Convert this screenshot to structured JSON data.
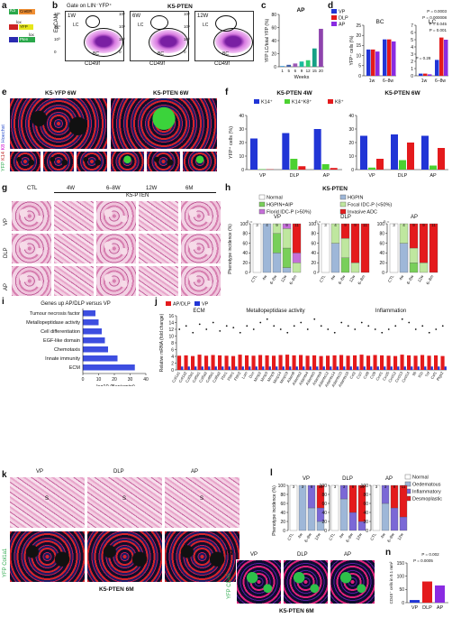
{
  "panels": {
    "a": "a",
    "b": "b",
    "c": "c",
    "d": "d",
    "e": "e",
    "f": "f",
    "g": "g",
    "h": "h",
    "i": "i",
    "j": "j",
    "k": "k",
    "l": "l",
    "m": "m",
    "n": "n"
  },
  "a": {
    "k5": "K5",
    "cre": "CreER",
    "lox1": "lox",
    "lox2": "lox",
    "yfp": "YFP",
    "pten": "Pten"
  },
  "b": {
    "gate": "Gate on LIN⁻YFP⁺",
    "title": "K5-PTEN",
    "xlabel": "CD49f",
    "ylabel": "EpCAM",
    "weeks": [
      "1W",
      "6W",
      "12W"
    ],
    "lc": "LC",
    "bc": "BC",
    "ticks": [
      "10⁵",
      "10⁴",
      "10³",
      "0"
    ]
  },
  "c": {
    "title": "AP",
    "ylabel": "YFP LC/total YFP (%)",
    "xlabel": "Weeks",
    "colors": [
      "#1a8ad3",
      "#3f5fa8",
      "#9b59b6",
      "#1abc9c",
      "#2ecc71",
      "#16a085",
      "#8e44ad"
    ]
  },
  "chart_data": [
    {
      "type": "bar",
      "title": "AP",
      "xlabel": "Weeks",
      "ylabel": "YFP LC/total YFP (%)",
      "categories": [
        "1",
        "5",
        "6",
        "9",
        "12",
        "15",
        "20"
      ],
      "values": [
        1,
        3,
        5,
        8,
        10,
        28,
        58
      ],
      "ylim": [
        0,
        80
      ],
      "yticks": [
        0,
        20,
        40,
        60,
        80
      ]
    },
    {
      "type": "bar",
      "title": "BC",
      "ylabel": "YFP⁺ cells (%)",
      "categories": [
        "1w",
        "6–8w"
      ],
      "series": [
        {
          "name": "VP",
          "values": [
            13,
            18
          ]
        },
        {
          "name": "DLP",
          "values": [
            13,
            18
          ]
        },
        {
          "name": "AP",
          "values": [
            12,
            17
          ]
        }
      ],
      "ylim": [
        0,
        25
      ],
      "yticks": [
        0,
        5,
        10,
        15,
        20,
        25
      ]
    },
    {
      "type": "bar",
      "title": "LC",
      "categories": [
        "1w",
        "6–8w"
      ],
      "series": [
        {
          "name": "VP",
          "values": [
            0.3,
            2.2
          ]
        },
        {
          "name": "DLP",
          "values": [
            0.3,
            5.3
          ]
        },
        {
          "name": "AP",
          "values": [
            0.2,
            5.0
          ]
        }
      ],
      "ylim": [
        0,
        7
      ],
      "yticks": [
        0,
        1,
        2,
        3,
        4,
        5,
        6,
        7
      ],
      "annotations": [
        "P = 0.0003",
        "P = 0.000008",
        "P = 0.045",
        "P = 0.001",
        "P = 0.28"
      ]
    },
    {
      "type": "bar",
      "title": "K5-PTEN 4W",
      "ylabel": "YFP⁺ cells (%)",
      "categories": [
        "VP",
        "DLP",
        "AP"
      ],
      "series": [
        {
          "name": "K14⁺",
          "values": [
            23,
            27,
            30
          ]
        },
        {
          "name": "K14⁺K8⁺",
          "values": [
            0.3,
            8,
            4
          ]
        },
        {
          "name": "K8⁺",
          "values": [
            0.2,
            2.5,
            1.2
          ]
        }
      ],
      "ylim": [
        0,
        40
      ],
      "yticks": [
        0,
        10,
        20,
        30,
        40
      ]
    },
    {
      "type": "bar",
      "title": "K5-PTEN 6W",
      "categories": [
        "VP",
        "DLP",
        "AP"
      ],
      "series": [
        {
          "name": "K14⁺",
          "values": [
            25,
            26,
            25
          ]
        },
        {
          "name": "K14⁺K8⁺",
          "values": [
            1.5,
            7,
            3
          ]
        },
        {
          "name": "K8⁺",
          "values": [
            8,
            20,
            16
          ]
        }
      ],
      "ylim": [
        0,
        40
      ],
      "yticks": [
        0,
        10,
        20,
        30,
        40
      ]
    },
    {
      "type": "bar",
      "title": "Genes up AP/DLP versus VP",
      "xlabel": "−log10 (Benjamini)",
      "categories": [
        "Tumour necrosis factor",
        "Metallopeptidase activity",
        "Cell differentiation",
        "EGF-like domain",
        "Chemotaxis",
        "Innate immunity",
        "ECM"
      ],
      "values": [
        8,
        10,
        12,
        14,
        16,
        22,
        33
      ],
      "xlim": [
        0,
        40
      ],
      "xticks": [
        0,
        10,
        20,
        30,
        40
      ]
    },
    {
      "type": "bar",
      "title": "",
      "ylabel": "Relative mRNA (fold change)",
      "series": [
        {
          "name": "AP/DLP",
          "values": [
            1
          ]
        },
        {
          "name": "VP",
          "values": [
            1
          ]
        }
      ],
      "groups": [
        "ECM",
        "Metallopeptidase activity",
        "Inflammation"
      ],
      "ylim": [
        0,
        16
      ],
      "yticks": [
        0,
        2,
        4,
        6,
        8,
        10,
        12,
        14,
        16
      ]
    },
    {
      "type": "bar",
      "title": "",
      "ylabel": "CD45⁺ cells in 0.1 mm²",
      "categories": [
        "VP",
        "DLP",
        "AP"
      ],
      "values": [
        10,
        80,
        65
      ],
      "ylim": [
        0,
        150
      ],
      "yticks": [
        0,
        50,
        100,
        150
      ],
      "annotations": [
        "P = 0.002",
        "P = 0.0005"
      ]
    }
  ],
  "d": {
    "legend": [
      "VP",
      "DLP",
      "AP"
    ],
    "colors": [
      "#2135d6",
      "#e41a1c",
      "#8a2be2"
    ],
    "bc": "BC",
    "lc": "LC",
    "ylabel": "YFP⁺ cells (%)",
    "p": [
      "P = 0.0003",
      "P = 0.000008",
      "P = 0.045",
      "P = 0.001",
      "P = 0.28"
    ],
    "cats": [
      "1w",
      "6–8w",
      "1w",
      "6–8w"
    ]
  },
  "e": {
    "left": "K5-YFP 6W",
    "right": "K5-PTEN 6W",
    "ylabel_yfp": "YFP",
    "ylabel_k14": "K14",
    "ylabel_k8": "K8",
    "ylabel_h": "Hoechst"
  },
  "f": {
    "left": "K5-PTEN 4W",
    "right": "K5-PTEN 6W",
    "legend": [
      "K14⁺",
      "K14⁺K8⁺",
      "K8⁺"
    ],
    "colors": [
      "#2135d6",
      "#4cd131",
      "#e41a1c"
    ],
    "ylabel": "YFP⁺ cells (%)",
    "cats": [
      "VP",
      "DLP",
      "AP"
    ]
  },
  "g": {
    "ctl": "CTL",
    "w4": "4W",
    "w68": "6–8W",
    "w12": "12W",
    "m6": "6M",
    "k5": "K5-PTEN",
    "rows": [
      "VP",
      "DLP",
      "AP"
    ]
  },
  "h": {
    "title": "K5-PTEN",
    "legend": [
      "Normal",
      "HGPIN",
      "HGPIN+AIP",
      "Focal IDC-P (<50%)",
      "Florid IDC-P (>50%)",
      "Invasive ADC"
    ],
    "colors": [
      "#ffffff",
      "#9eb7d8",
      "#79cf5a",
      "#bfe79f",
      "#c56fd8",
      "#e41a1c"
    ],
    "panels": [
      "VP",
      "DLP",
      "AP"
    ],
    "ylabel": "Phenotype incidence (%)",
    "n": "n =",
    "ns": [
      "3",
      "4",
      "9",
      "9",
      "11"
    ],
    "cats": [
      "CTL",
      "4w",
      "6–8w",
      "12w",
      "6–8m"
    ]
  },
  "i": {
    "title": "Genes up AP/DLP versus VP",
    "cats": [
      "Tumour necrosis factor",
      "Metallopeptidase activity",
      "Cell differentiation",
      "EGF-like domain",
      "Chemotaxis",
      "Innate immunity",
      "ECM"
    ],
    "xlabel": "−log10 (Benjamini)",
    "ticks": [
      "0",
      "10",
      "20",
      "30",
      "40"
    ]
  },
  "j": {
    "legend": [
      "AP/DLP",
      "VP"
    ],
    "groups": [
      "ECM",
      "Metallopeptidase activity",
      "Inflammation"
    ],
    "ylabel": "Relative mRNA (fold change)",
    "genes": [
      "Col1a1",
      "Col1a2",
      "Col3a1",
      "Col5a1",
      "Col5a2",
      "Col6a1",
      "Col6a2",
      "Fbn1",
      "Fbln1",
      "Fbln2",
      "Lum",
      "Dcn",
      "Mmp2",
      "Mmp3",
      "Mmp9",
      "Mmp14",
      "Mmp19",
      "Adam8",
      "Adamts2",
      "Adamts4",
      "Adamts5",
      "Adamts9",
      "Adamts12",
      "Adamts14",
      "Adamts15",
      "Adamts16",
      "Ccl2",
      "Ccl7",
      "Ccl8",
      "Ccl9",
      "Cxcl1",
      "Cxcl5",
      "Cxcl12",
      "Cxcl13",
      "Cxcl14",
      "Il6",
      "Il1b",
      "Tnf",
      "Csf1",
      "Ptgs2"
    ]
  },
  "k": {
    "rows": [
      "VP",
      "DLP",
      "AP"
    ],
    "s": "S",
    "bottom": "K5-PTEN 6M",
    "ylabel": "YFP Col1a1"
  },
  "l": {
    "legend": [
      "Normal",
      "Oedematous",
      "Inflammatory",
      "Desmoplastic"
    ],
    "colors": [
      "#ffffff",
      "#9eb7d8",
      "#7b68d6",
      "#e41a1c"
    ],
    "panels": [
      "VP",
      "DLP",
      "AP"
    ],
    "ylabel": "Phenotype incidence (%)",
    "ns": [
      "3",
      "3",
      "8",
      "11"
    ],
    "cats": [
      "CTL",
      "4w",
      "6–8w",
      "12w"
    ]
  },
  "m": {
    "cols": [
      "VP",
      "DLP",
      "AP"
    ],
    "ylabel": "YFP CD45",
    "bottom": "K5-PTEN 6M"
  },
  "n": {
    "p1": "P = 0.002",
    "p2": "P = 0.0005",
    "ylabel": "CD45⁺ cells in 0.1 mm²",
    "cats": [
      "VP",
      "DLP",
      "AP"
    ],
    "ticks": [
      "0",
      "50",
      "100",
      "150"
    ]
  }
}
